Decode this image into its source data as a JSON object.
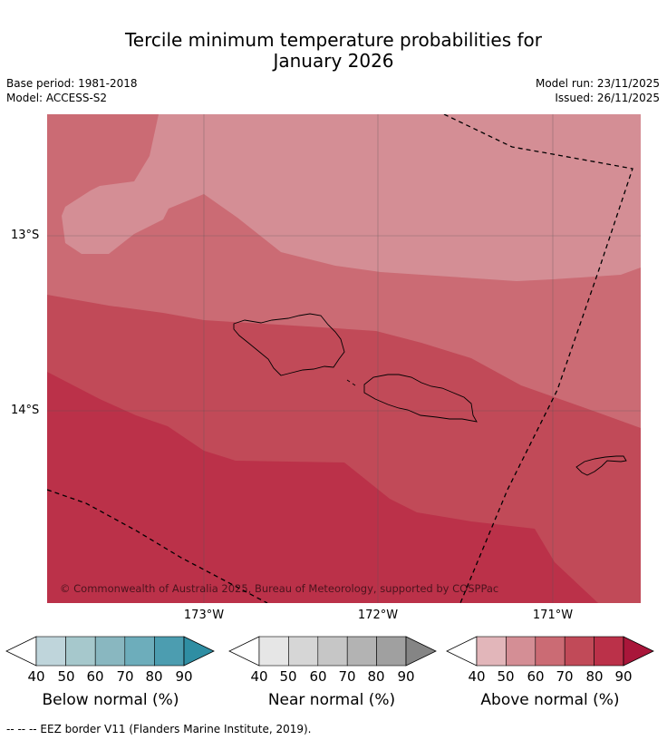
{
  "title": {
    "line1": "Tercile minimum temperature probabilities for",
    "line2": "January 2026"
  },
  "meta": {
    "base_period": "Base period: 1981-2018",
    "model": "Model: ACCESS-S2",
    "model_run": "Model run: 23/11/2025",
    "issued": "Issued: 26/11/2025"
  },
  "map": {
    "lat_labels": [
      "13°S",
      "14°S"
    ],
    "lon_labels": [
      "173°W",
      "172°W",
      "171°W"
    ],
    "copyright": "© Commonwealth of Australia 2025, Bureau of Meteorology, supported by COSPPac",
    "colors": {
      "above_50": "#d48e95",
      "above_60": "#cb6b74",
      "above_70": "#c14a58",
      "above_80": "#bb3149"
    }
  },
  "colorbars": [
    {
      "label": "Below normal (%)",
      "ticks": [
        "40",
        "50",
        "60",
        "70",
        "80",
        "90"
      ],
      "colors": [
        "#bfd5db",
        "#a6c8cc",
        "#89b7c0",
        "#6dadbb",
        "#4c9db0",
        "#2f8ea3"
      ]
    },
    {
      "label": "Near normal (%)",
      "ticks": [
        "40",
        "50",
        "60",
        "70",
        "80",
        "90"
      ],
      "colors": [
        "#e6e6e6",
        "#d6d6d6",
        "#c6c6c6",
        "#b3b3b3",
        "#a0a0a0",
        "#858585"
      ]
    },
    {
      "label": "Above normal (%)",
      "ticks": [
        "40",
        "50",
        "60",
        "70",
        "80",
        "90"
      ],
      "colors": [
        "#e2b6ba",
        "#d48e95",
        "#cb6b74",
        "#c14a58",
        "#bb3149",
        "#a9163a"
      ]
    }
  ],
  "footer": "--  --  -- EEZ border V11 (Flanders Marine Institute, 2019)."
}
